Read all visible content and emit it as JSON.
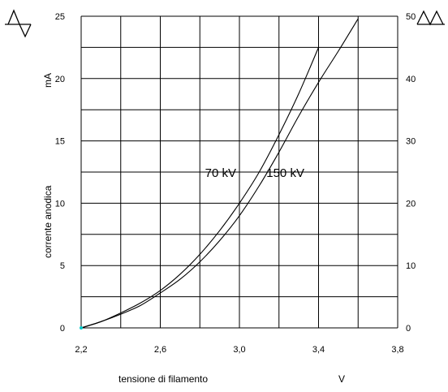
{
  "chart_data": {
    "type": "line",
    "xlabel": "tensione di filamento",
    "xunit": "V",
    "ylabel_left": "corrente anodica",
    "yunit_left": "mA",
    "xlim": [
      2.2,
      3.8
    ],
    "ylim_left": [
      0,
      25
    ],
    "ylim_right": [
      0,
      50
    ],
    "x_ticks": [
      "2,2",
      "2,6",
      "3,0",
      "3,4",
      "3,8"
    ],
    "y_left_ticks": [
      "0",
      "5",
      "10",
      "15",
      "20",
      "25"
    ],
    "y_right_ticks": [
      "0",
      "10",
      "20",
      "30",
      "40",
      "50"
    ],
    "grid": true,
    "left_axis_symbol": "single-phase-half-wave-icon",
    "right_axis_symbol": "full-wave-rectified-icon",
    "series": [
      {
        "name": "70 kV",
        "points": [
          [
            2.2,
            0
          ],
          [
            2.3,
            0.5
          ],
          [
            2.4,
            1.2
          ],
          [
            2.5,
            2.0
          ],
          [
            2.6,
            3.0
          ],
          [
            2.7,
            4.3
          ],
          [
            2.8,
            5.9
          ],
          [
            2.9,
            7.8
          ],
          [
            3.0,
            10.0
          ],
          [
            3.1,
            12.5
          ],
          [
            3.2,
            15.5
          ],
          [
            3.3,
            18.8
          ],
          [
            3.4,
            22.5
          ]
        ]
      },
      {
        "name": "150 kV",
        "points": [
          [
            2.2,
            0
          ],
          [
            2.3,
            0.5
          ],
          [
            2.4,
            1.1
          ],
          [
            2.5,
            1.8
          ],
          [
            2.6,
            2.8
          ],
          [
            2.7,
            3.9
          ],
          [
            2.8,
            5.3
          ],
          [
            2.9,
            7.0
          ],
          [
            3.0,
            9.0
          ],
          [
            3.1,
            11.4
          ],
          [
            3.2,
            14.1
          ],
          [
            3.3,
            17.0
          ],
          [
            3.4,
            19.7
          ],
          [
            3.5,
            22.2
          ],
          [
            3.6,
            24.8
          ]
        ]
      }
    ],
    "labels": [
      {
        "text": "70 kV",
        "series": "70 kV"
      },
      {
        "text": "150 kV",
        "series": "150 kV"
      }
    ]
  }
}
